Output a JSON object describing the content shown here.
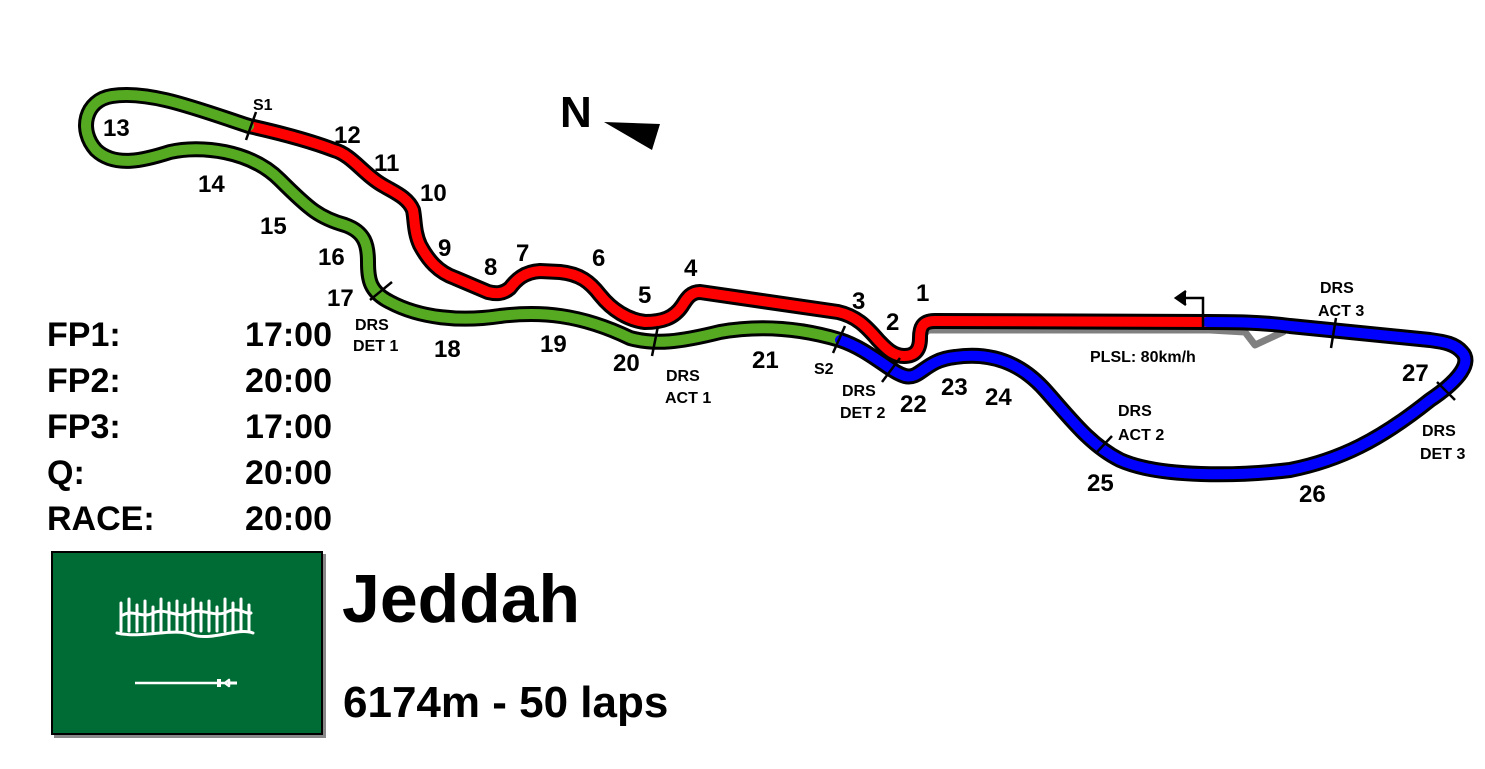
{
  "north_label": "N",
  "corners": [
    "1",
    "2",
    "3",
    "4",
    "5",
    "6",
    "7",
    "8",
    "9",
    "10",
    "11",
    "12",
    "13",
    "14",
    "15",
    "16",
    "17",
    "18",
    "19",
    "20",
    "21",
    "22",
    "23",
    "24",
    "25",
    "26",
    "27"
  ],
  "sectors": {
    "s1": "S1",
    "s2": "S2"
  },
  "drs": {
    "det1": [
      "DRS",
      "DET 1"
    ],
    "act1": [
      "DRS",
      "ACT 1"
    ],
    "det2": [
      "DRS",
      "DET 2"
    ],
    "act2": [
      "DRS",
      "ACT 2"
    ],
    "act3": [
      "DRS",
      "ACT 3"
    ],
    "det3": [
      "DRS",
      "DET 3"
    ]
  },
  "pit_speed_limit": "PLSL: 80km/h",
  "schedule": [
    {
      "session": "FP1:",
      "time": "17:00"
    },
    {
      "session": "FP2:",
      "time": "20:00"
    },
    {
      "session": "FP3:",
      "time": "17:00"
    },
    {
      "session": "Q:",
      "time": "20:00"
    },
    {
      "session": "RACE:",
      "time": "20:00"
    }
  ],
  "city": "Jeddah",
  "track_info": "6174m - 50 laps",
  "colors": {
    "sector1": "#ff0000",
    "sector2": "#55aa22",
    "sector3": "#0000ff",
    "pitlane": "#808080",
    "flag_green": "#006c35"
  },
  "flag_icon": "saudi-arabia-flag"
}
